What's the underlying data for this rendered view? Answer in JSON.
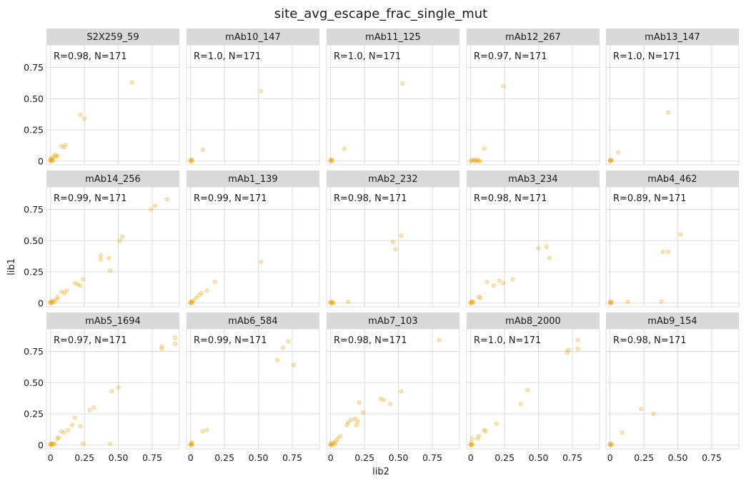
{
  "chart_data": {
    "type": "scatter",
    "title": "site_avg_escape_frac_single_mut",
    "xlabel": "lib2",
    "ylabel": "lib1",
    "xlim": [
      -0.03,
      0.95
    ],
    "ylim": [
      -0.03,
      0.93
    ],
    "x_ticks": [
      0,
      0.25,
      0.5,
      0.75
    ],
    "x_tick_labels": [
      "0",
      "0.25",
      "0.50",
      "0.75"
    ],
    "y_ticks": [
      0,
      0.25,
      0.5,
      0.75
    ],
    "y_tick_labels": [
      "0",
      "0.25",
      "0.50",
      "0.75"
    ],
    "grid": true,
    "point_color": "#E69F00",
    "strip_color": "#d9d9d9",
    "grid_color": "#dddddd",
    "panels": [
      {
        "label": "S2X259_59",
        "annotation": "R=0.98, N=171",
        "points": [
          [
            0,
            0
          ],
          [
            0,
            0.01
          ],
          [
            0.01,
            0
          ],
          [
            0.01,
            0.01
          ],
          [
            0,
            0.02
          ],
          [
            0.02,
            0.01
          ],
          [
            0.02,
            0.03
          ],
          [
            0.03,
            0.05
          ],
          [
            0.04,
            0.04
          ],
          [
            0.05,
            0.04
          ],
          [
            0.08,
            0.12
          ],
          [
            0.1,
            0.11
          ],
          [
            0.11,
            0.13
          ],
          [
            0.22,
            0.37
          ],
          [
            0.25,
            0.34
          ],
          [
            0.6,
            0.63
          ]
        ]
      },
      {
        "label": "mAb10_147",
        "annotation": "R=1.0, N=171",
        "points": [
          [
            0,
            0
          ],
          [
            0,
            0.01
          ],
          [
            0.01,
            0
          ],
          [
            0.01,
            0.01
          ],
          [
            0.09,
            0.09
          ],
          [
            0.52,
            0.56
          ]
        ]
      },
      {
        "label": "mAb11_125",
        "annotation": "R=1.0, N=171",
        "points": [
          [
            0,
            0
          ],
          [
            0,
            0.01
          ],
          [
            0.01,
            0
          ],
          [
            0.01,
            0.01
          ],
          [
            0.1,
            0.1
          ],
          [
            0.53,
            0.62
          ]
        ]
      },
      {
        "label": "mAb12_267",
        "annotation": "R=0.97, N=171",
        "points": [
          [
            0,
            0
          ],
          [
            0.01,
            0.01
          ],
          [
            0.02,
            0
          ],
          [
            0.03,
            0.01
          ],
          [
            0.04,
            0
          ],
          [
            0.05,
            0.01
          ],
          [
            0.06,
            0
          ],
          [
            0.07,
            0
          ],
          [
            0.1,
            0.1
          ],
          [
            0.24,
            0.6
          ]
        ]
      },
      {
        "label": "mAb13_147",
        "annotation": "R=1.0, N=171",
        "points": [
          [
            0,
            0
          ],
          [
            0,
            0.01
          ],
          [
            0.01,
            0
          ],
          [
            0.01,
            0.01
          ],
          [
            0.06,
            0.07
          ],
          [
            0.43,
            0.39
          ]
        ]
      },
      {
        "label": "mAb14_256",
        "annotation": "R=0.99, N=171",
        "points": [
          [
            0,
            0
          ],
          [
            0,
            0.01
          ],
          [
            0.01,
            0
          ],
          [
            0.01,
            0.01
          ],
          [
            0.02,
            0.02
          ],
          [
            0.03,
            0.01
          ],
          [
            0.05,
            0.03
          ],
          [
            0.05,
            0.05
          ],
          [
            0.08,
            0.09
          ],
          [
            0.1,
            0.08
          ],
          [
            0.12,
            0.1
          ],
          [
            0.18,
            0.16
          ],
          [
            0.2,
            0.15
          ],
          [
            0.22,
            0.14
          ],
          [
            0.24,
            0.19
          ],
          [
            0.37,
            0.35
          ],
          [
            0.37,
            0.38
          ],
          [
            0.43,
            0.36
          ],
          [
            0.44,
            0.26
          ],
          [
            0.51,
            0.5
          ],
          [
            0.53,
            0.53
          ],
          [
            0.74,
            0.75
          ],
          [
            0.77,
            0.78
          ],
          [
            0.86,
            0.83
          ]
        ]
      },
      {
        "label": "mAb1_139",
        "annotation": "R=0.99, N=171",
        "points": [
          [
            0,
            0
          ],
          [
            0,
            0.01
          ],
          [
            0.01,
            0
          ],
          [
            0.01,
            0.01
          ],
          [
            0.02,
            0.02
          ],
          [
            0.04,
            0.04
          ],
          [
            0.06,
            0.06
          ],
          [
            0.08,
            0.08
          ],
          [
            0.12,
            0.1
          ],
          [
            0.18,
            0.17
          ],
          [
            0.52,
            0.33
          ]
        ]
      },
      {
        "label": "mAb2_232",
        "annotation": "R=0.98, N=171",
        "points": [
          [
            0,
            0
          ],
          [
            0,
            0.01
          ],
          [
            0.01,
            0
          ],
          [
            0.01,
            0.01
          ],
          [
            0.02,
            0
          ],
          [
            0.13,
            0.01
          ],
          [
            0.46,
            0.49
          ],
          [
            0.48,
            0.43
          ],
          [
            0.52,
            0.54
          ]
        ]
      },
      {
        "label": "mAb3_234",
        "annotation": "R=0.98, N=171",
        "points": [
          [
            0,
            0
          ],
          [
            0,
            0.01
          ],
          [
            0.01,
            0
          ],
          [
            0.01,
            0.01
          ],
          [
            0.02,
            0.01
          ],
          [
            0.06,
            0.05
          ],
          [
            0.07,
            0.04
          ],
          [
            0.12,
            0.17
          ],
          [
            0.17,
            0.14
          ],
          [
            0.21,
            0.18
          ],
          [
            0.24,
            0.16
          ],
          [
            0.31,
            0.19
          ],
          [
            0.5,
            0.44
          ],
          [
            0.56,
            0.45
          ],
          [
            0.58,
            0.36
          ]
        ]
      },
      {
        "label": "mAb4_462",
        "annotation": "R=0.89, N=171",
        "points": [
          [
            0,
            0
          ],
          [
            0,
            0.01
          ],
          [
            0.01,
            0
          ],
          [
            0.01,
            0.01
          ],
          [
            0.13,
            0.01
          ],
          [
            0.38,
            0.01
          ],
          [
            0.39,
            0.41
          ],
          [
            0.43,
            0.41
          ],
          [
            0.52,
            0.55
          ]
        ]
      },
      {
        "label": "mAb5_1694",
        "annotation": "R=0.97, N=171",
        "points": [
          [
            0,
            0
          ],
          [
            0,
            0.01
          ],
          [
            0.01,
            0
          ],
          [
            0.01,
            0.01
          ],
          [
            0.02,
            0.01
          ],
          [
            0.03,
            0.01
          ],
          [
            0.05,
            0.05
          ],
          [
            0.06,
            0.06
          ],
          [
            0.08,
            0.11
          ],
          [
            0.1,
            0.1
          ],
          [
            0.13,
            0.12
          ],
          [
            0.16,
            0.16
          ],
          [
            0.18,
            0.22
          ],
          [
            0.22,
            0.15
          ],
          [
            0.24,
            0.01
          ],
          [
            0.29,
            0.28
          ],
          [
            0.32,
            0.3
          ],
          [
            0.44,
            0.01
          ],
          [
            0.45,
            0.43
          ],
          [
            0.5,
            0.46
          ],
          [
            0.82,
            0.77
          ],
          [
            0.82,
            0.79
          ],
          [
            0.92,
            0.81
          ],
          [
            0.92,
            0.86
          ]
        ]
      },
      {
        "label": "mAb6_584",
        "annotation": "R=0.99, N=171",
        "points": [
          [
            0,
            0
          ],
          [
            0,
            0.01
          ],
          [
            0.01,
            0
          ],
          [
            0.01,
            0.01
          ],
          [
            0.01,
            0.02
          ],
          [
            0.09,
            0.11
          ],
          [
            0.12,
            0.12
          ],
          [
            0.64,
            0.68
          ],
          [
            0.68,
            0.78
          ],
          [
            0.72,
            0.83
          ],
          [
            0.76,
            0.64
          ]
        ]
      },
      {
        "label": "mAb7_103",
        "annotation": "R=0.98, N=171",
        "points": [
          [
            0,
            0
          ],
          [
            0,
            0.01
          ],
          [
            0.01,
            0
          ],
          [
            0.01,
            0.01
          ],
          [
            0.02,
            0.02
          ],
          [
            0.03,
            0.01
          ],
          [
            0.04,
            0.03
          ],
          [
            0.05,
            0.05
          ],
          [
            0.07,
            0.07
          ],
          [
            0.12,
            0.16
          ],
          [
            0.13,
            0.18
          ],
          [
            0.15,
            0.2
          ],
          [
            0.18,
            0.21
          ],
          [
            0.19,
            0.16
          ],
          [
            0.2,
            0.19
          ],
          [
            0.21,
            0.34
          ],
          [
            0.24,
            0.26
          ],
          [
            0.37,
            0.37
          ],
          [
            0.39,
            0.36
          ],
          [
            0.44,
            0.33
          ],
          [
            0.52,
            0.43
          ],
          [
            0.8,
            0.84
          ]
        ]
      },
      {
        "label": "mAb8_2000",
        "annotation": "R=1.0, N=171",
        "points": [
          [
            0,
            0
          ],
          [
            0,
            0.01
          ],
          [
            0.01,
            0
          ],
          [
            0.01,
            0.01
          ],
          [
            0.01,
            0.05
          ],
          [
            0.05,
            0.05
          ],
          [
            0.06,
            0.07
          ],
          [
            0.1,
            0.12
          ],
          [
            0.11,
            0.11
          ],
          [
            0.19,
            0.17
          ],
          [
            0.37,
            0.33
          ],
          [
            0.42,
            0.44
          ],
          [
            0.71,
            0.74
          ],
          [
            0.72,
            0.76
          ],
          [
            0.79,
            0.77
          ],
          [
            0.79,
            0.84
          ]
        ]
      },
      {
        "label": "mAb9_154",
        "annotation": "R=0.98, N=171",
        "points": [
          [
            0,
            0
          ],
          [
            0,
            0.01
          ],
          [
            0.01,
            0
          ],
          [
            0.01,
            0.01
          ],
          [
            0.09,
            0.1
          ],
          [
            0.23,
            0.29
          ],
          [
            0.32,
            0.25
          ]
        ]
      }
    ]
  }
}
